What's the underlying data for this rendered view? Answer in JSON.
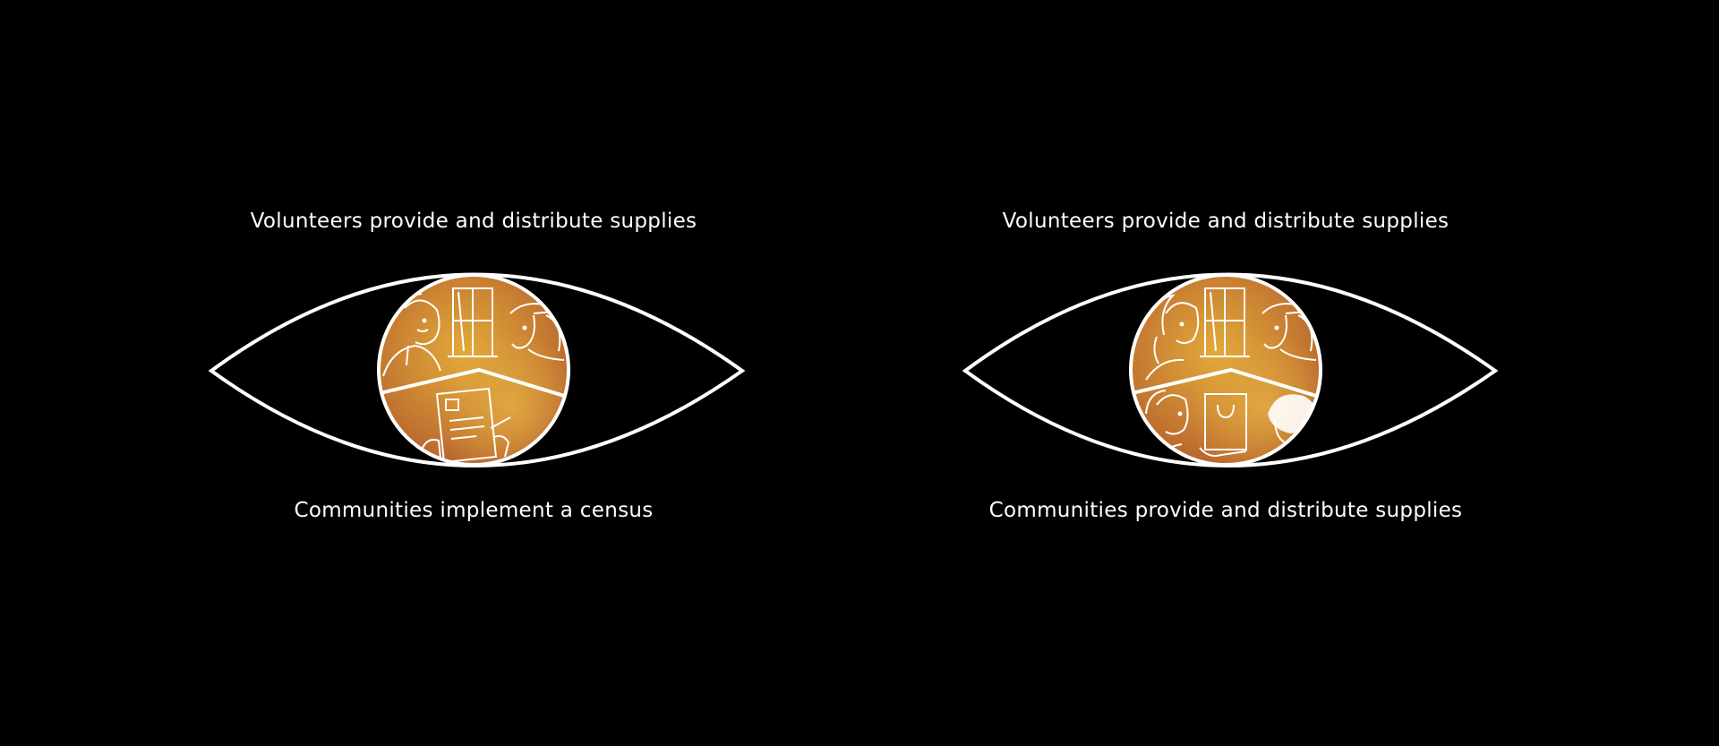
{
  "eyes": [
    {
      "top_label": "Volunteers provide and distribute supplies",
      "bottom_label": "Communities implement a census"
    },
    {
      "top_label": "Volunteers provide and distribute supplies",
      "bottom_label": "Communities provide and distribute supplies"
    }
  ],
  "colors": {
    "background": "#000000",
    "outline": "#ffffff",
    "iris_light": "#e0a638",
    "iris_dark": "#b8622e"
  },
  "icons": {
    "left_iris": [
      "man-with-mustache-icon",
      "window-icon",
      "woman-with-cap-icon",
      "clipboard-census-icon"
    ],
    "right_iris": [
      "woman-with-phone-icon",
      "window-icon",
      "woman-with-cap-icon",
      "older-woman-icon",
      "shopping-bag-icon",
      "child-icon"
    ]
  }
}
